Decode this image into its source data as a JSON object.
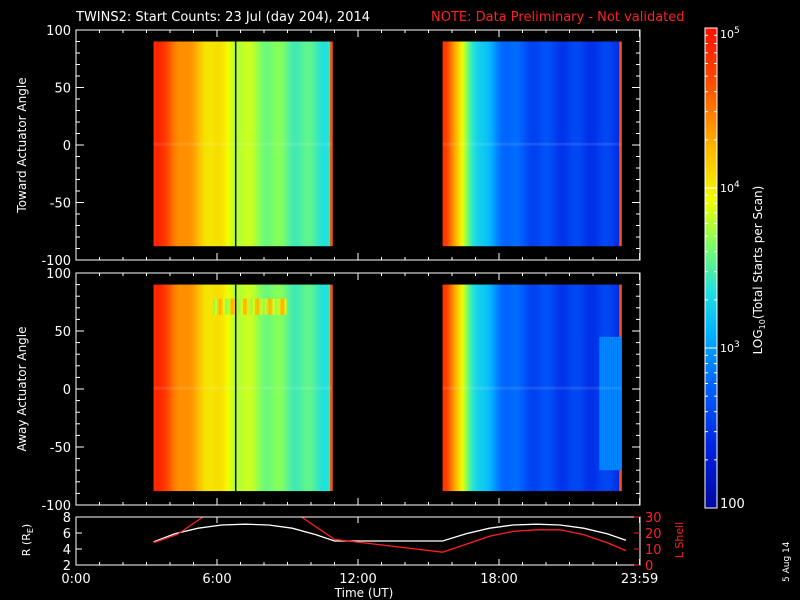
{
  "title": {
    "main": "TWINS2: Start Counts: 23 Jul (day 204), 2014",
    "note": "NOTE: Data Preliminary - Not validated"
  },
  "colors": {
    "background": "#000000",
    "axis": "#ffffff",
    "note": "#ff2020",
    "orbit_r": "#ffffff",
    "orbit_l": "#ff2020",
    "low": "#0010c0",
    "high": "#ff2000"
  },
  "chart_data": [
    {
      "type": "heatmap",
      "ylabel": "Toward Actuator Angle",
      "ylim": [
        -100,
        100
      ],
      "yticks": [
        -100,
        -50,
        0,
        50,
        100
      ],
      "xlim": [
        0,
        24
      ],
      "data_windows": [
        {
          "start": 3.3,
          "end": 10.9,
          "top": 90,
          "bottom": -88
        },
        {
          "start": 15.6,
          "end": 23.2,
          "top": 90,
          "bottom": -88
        }
      ]
    },
    {
      "type": "heatmap",
      "ylabel": "Away Actuator Angle",
      "ylim": [
        -100,
        100
      ],
      "yticks": [
        -100,
        -50,
        0,
        50,
        100
      ],
      "xlim": [
        0,
        24
      ],
      "data_windows": [
        {
          "start": 3.3,
          "end": 10.9,
          "top": 90,
          "bottom": -88
        },
        {
          "start": 15.6,
          "end": 23.2,
          "top": 90,
          "bottom": -88
        }
      ]
    },
    {
      "type": "line",
      "xlabel": "Time (UT)",
      "ylabel_left": "R (RE)",
      "ylabel_left_base": "R (R",
      "ylabel_left_sub": "E",
      "ylabel_left_end": ")",
      "ylabel_right": "L Shell",
      "xlim": [
        0,
        24
      ],
      "xticks": [
        0,
        6,
        12,
        18,
        23.983
      ],
      "xticklabels": [
        "0:00",
        "6:00",
        "12:00",
        "18:00",
        "23:59"
      ],
      "ylim_left": [
        2,
        8
      ],
      "yticks_left": [
        2,
        4,
        6,
        8
      ],
      "ylim_right": [
        0,
        30
      ],
      "yticks_right": [
        0,
        10,
        20,
        30
      ],
      "series": [
        {
          "axis": "left",
          "x": [
            3.3,
            4.2,
            5.2,
            6.2,
            7.2,
            8.2,
            9.2,
            10.2,
            11.0,
            15.6,
            16.6,
            17.6,
            18.6,
            19.6,
            20.6,
            21.6,
            22.6,
            23.4
          ],
          "y": [
            4.9,
            5.9,
            6.6,
            7.0,
            7.1,
            7.0,
            6.6,
            5.8,
            5.0,
            5.0,
            5.9,
            6.6,
            7.0,
            7.1,
            7.0,
            6.6,
            5.9,
            5.1
          ]
        },
        {
          "axis": "right",
          "x": [
            3.3,
            4.3,
            5.0,
            5.4
          ],
          "y": [
            14,
            19,
            26,
            30
          ]
        },
        {
          "axis": "right",
          "x": [
            9.6,
            10.2,
            10.8,
            11.0,
            15.6,
            16.6,
            17.6,
            18.6,
            19.6,
            20.6,
            21.6,
            22.6,
            23.4
          ],
          "y": [
            30,
            24,
            18,
            16,
            8,
            13,
            18,
            21,
            22,
            22,
            19,
            14,
            9
          ]
        }
      ]
    },
    {
      "type": "colorbar",
      "scale": "log",
      "range": [
        100,
        100000
      ],
      "label": "LOG10(Total Starts per Scan)",
      "label_base": "LOG",
      "label_sub": "10",
      "label_rest": "(Total Starts per Scan)",
      "ticks": [
        {
          "value": 100000,
          "base": "10",
          "exp": "5"
        },
        {
          "value": 10000,
          "base": "10",
          "exp": "4"
        },
        {
          "value": 1000,
          "base": "10",
          "exp": "3"
        },
        {
          "value": 100,
          "base": "100",
          "exp": ""
        }
      ]
    }
  ],
  "stamp": "5 Aug 14"
}
